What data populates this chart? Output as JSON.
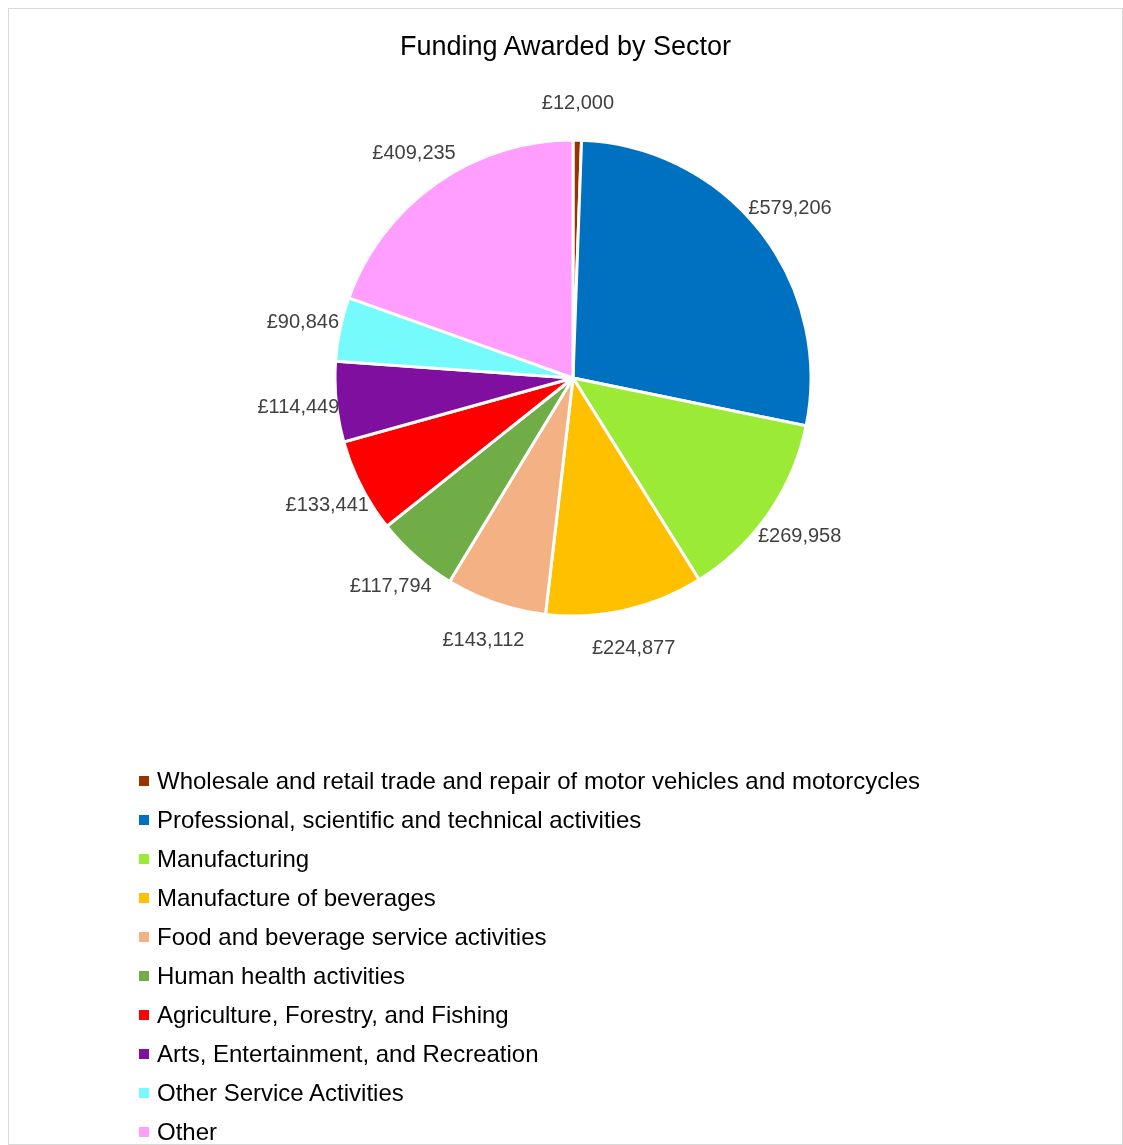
{
  "chart_data": {
    "type": "pie",
    "title": "Funding Awarded by Sector",
    "categories": [
      "Wholesale and retail trade and repair of motor vehicles and motorcycles",
      "Professional, scientific and technical activities",
      "Manufacturing",
      "Manufacture of beverages",
      "Food and beverage service activities",
      "Human health activities",
      "Agriculture, Forestry, and Fishing",
      "Arts, Entertainment, and Recreation",
      "Other Service Activities",
      "Other"
    ],
    "values": [
      12000,
      579206,
      269958,
      224877,
      143112,
      117794,
      133441,
      114449,
      90846,
      409235
    ],
    "value_labels": [
      "£12,000",
      "£579,206",
      "£269,958",
      "£224,877",
      "£143,112",
      "£117,794",
      "£133,441",
      "£114,449",
      "£90,846",
      "£409,235"
    ],
    "colors": [
      "#993300",
      "#0070c0",
      "#9bea36",
      "#ffc000",
      "#f4b183",
      "#70ad47",
      "#ff0000",
      "#7f0f9e",
      "#75fbfb",
      "#ff9eff"
    ],
    "legend": "bottom"
  }
}
